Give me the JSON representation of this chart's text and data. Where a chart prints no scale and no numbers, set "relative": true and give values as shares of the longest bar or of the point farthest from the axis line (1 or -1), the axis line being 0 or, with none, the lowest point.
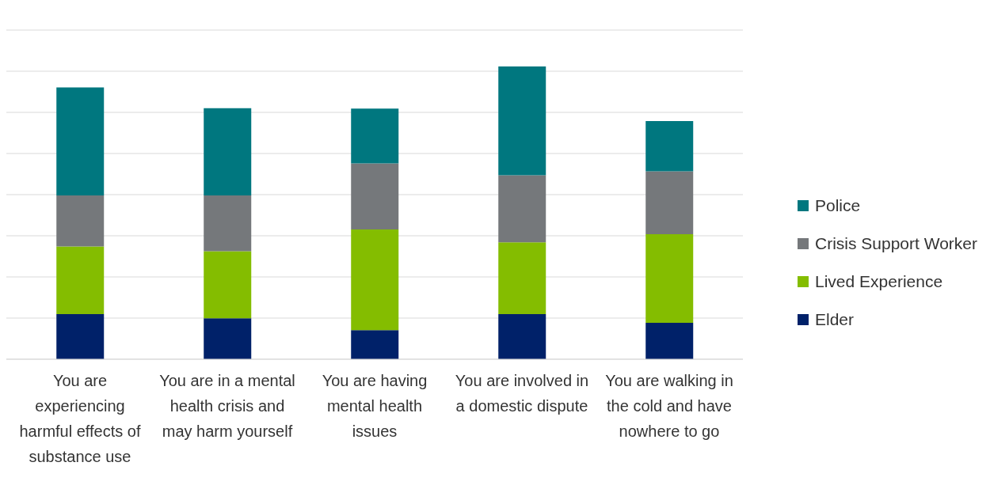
{
  "chart_data": {
    "type": "bar",
    "stacked": true,
    "relative": true,
    "grid": "y",
    "legend": "right",
    "categories": [
      "You are experiencing harmful effects of substance use",
      "You are in a mental health crisis and may harm yourself",
      "You are having mental health issues",
      "You are involved in a domestic dispute",
      "You are walking in the cold and have nowhere to go"
    ],
    "series": [
      {
        "name": "Elder",
        "color": "#002169",
        "values": [
          0.154,
          0.14,
          0.099,
          0.154,
          0.124
        ]
      },
      {
        "name": "Lived Experience",
        "color": "#84bd00",
        "values": [
          0.231,
          0.229,
          0.344,
          0.245,
          0.303
        ]
      },
      {
        "name": "Crisis Support Worker",
        "color": "#75787b",
        "values": [
          0.174,
          0.19,
          0.226,
          0.229,
          0.215
        ]
      },
      {
        "name": "Police",
        "color": "#00777f",
        "values": [
          0.369,
          0.298,
          0.187,
          0.372,
          0.171
        ]
      }
    ]
  }
}
